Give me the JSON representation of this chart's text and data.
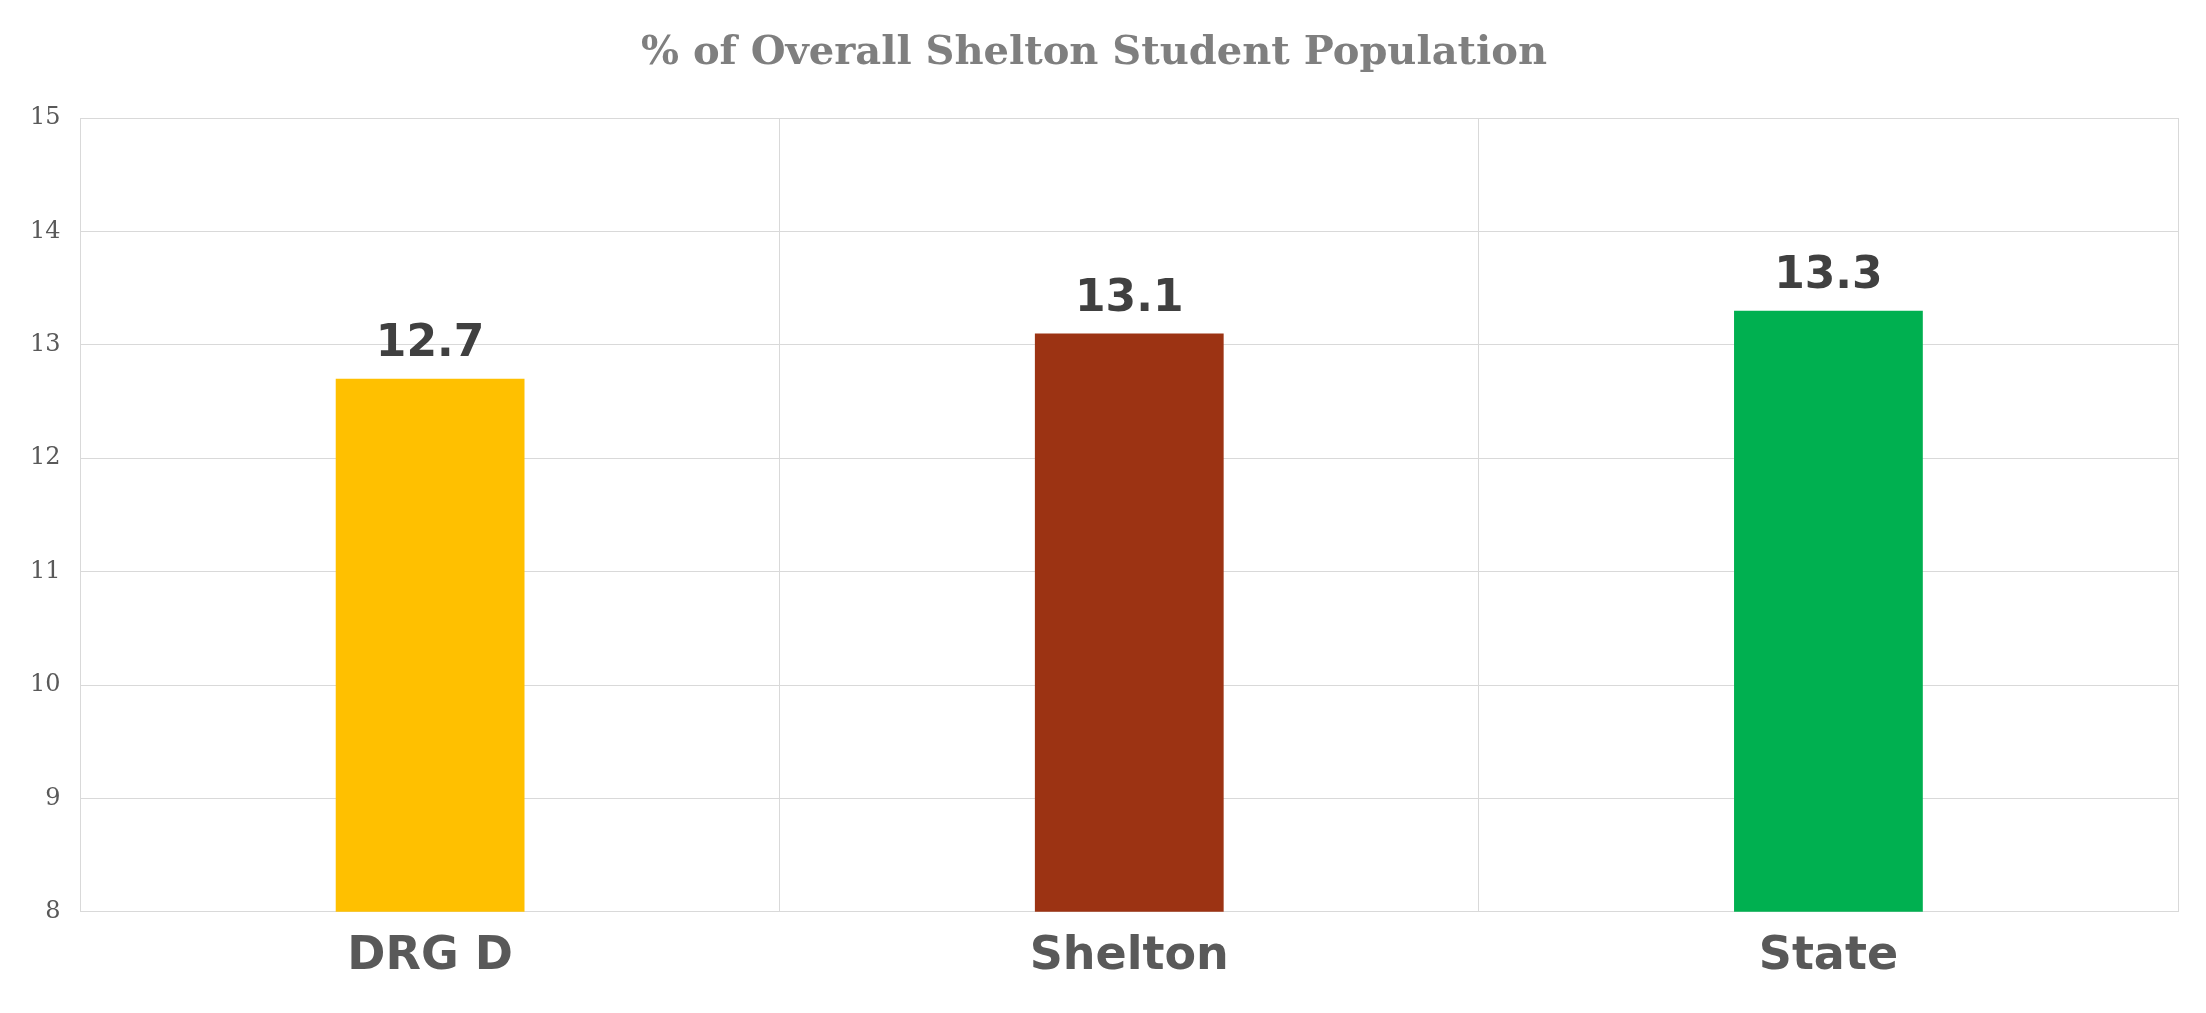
{
  "chart_data": {
    "type": "bar",
    "title": "% of Overall Shelton Student Population",
    "categories": [
      "DRG D",
      "Shelton",
      "State"
    ],
    "values": [
      12.7,
      13.1,
      13.3
    ],
    "colors": [
      "#ffc000",
      "#9c3313",
      "#00b050"
    ],
    "ylim": [
      8,
      15
    ],
    "yticks": [
      8,
      9,
      10,
      11,
      12,
      13,
      14,
      15
    ],
    "grid": true,
    "data_labels": true
  }
}
